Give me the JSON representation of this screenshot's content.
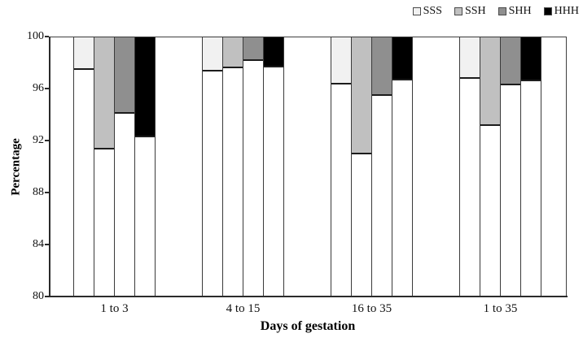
{
  "figure": {
    "background": "#ffffff",
    "bar_border_color": "#3a3a3a",
    "axis_color": "#2b2b2b"
  },
  "chart_data": {
    "type": "bar",
    "subtype": "column-remainder-filled-to-100",
    "title": "",
    "xlabel": "Days of gestation",
    "ylabel": "Percentage",
    "ylim": [
      80,
      100
    ],
    "yticks": [
      80,
      84,
      88,
      92,
      96,
      100
    ],
    "grid": false,
    "legend_position": "top-right",
    "categories": [
      "1 to 3",
      "4 to 15",
      "16 to 35",
      "1 to 35"
    ],
    "series": [
      {
        "name": "SSS",
        "color": "#f1f1f1",
        "values": [
          97.5,
          97.4,
          96.4,
          96.8
        ]
      },
      {
        "name": "SSH",
        "color": "#c0c0c0",
        "values": [
          91.4,
          97.6,
          91.0,
          93.2
        ]
      },
      {
        "name": "SHH",
        "color": "#8f8f8f",
        "values": [
          94.1,
          98.2,
          95.5,
          96.3
        ]
      },
      {
        "name": "HHH",
        "color": "#000000",
        "values": [
          92.3,
          97.7,
          96.7,
          96.6
        ]
      }
    ]
  }
}
